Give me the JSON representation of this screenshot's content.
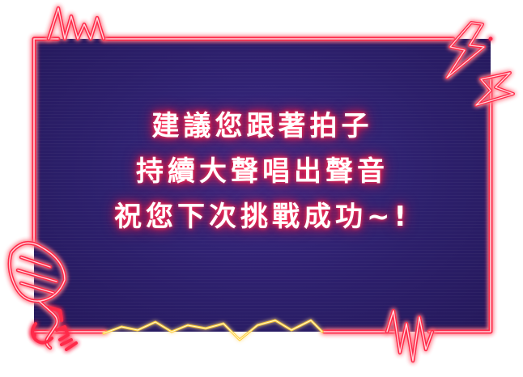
{
  "colors": {
    "frame_neon": "#ff2a4a",
    "frame_core": "#ffd6dc",
    "panel_bg": "#2c1f6b",
    "text": "#ffffff",
    "text_glow": "#ff1744",
    "wave_glow": "#ffcc33"
  },
  "message": {
    "line1": "建議您跟著拍子",
    "line2": "持續大聲唱出聲音",
    "line3": "祝您下次挑戰成功~!"
  },
  "icons": [
    "microphone-icon",
    "lightning-bolt-icon",
    "audio-wave-icon",
    "pulse-line-icon"
  ]
}
